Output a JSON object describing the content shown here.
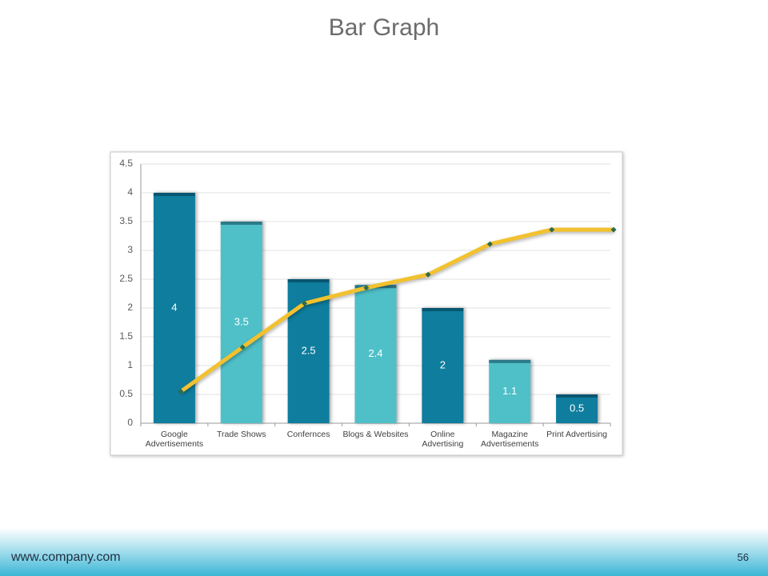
{
  "title": "Bar Graph",
  "chart_data": [
    {
      "type": "bar",
      "categories": [
        "Google Advertisements",
        "Trade Shows",
        "Confernces",
        "Blogs & Websites",
        "Online Advertising",
        "Magazine Advertisements",
        "Print Advertising"
      ],
      "values": [
        4,
        3.5,
        2.5,
        2.4,
        2,
        1.1,
        0.5
      ],
      "colors": [
        "#0f7d9e",
        "#4fc0c8",
        "#0f7d9e",
        "#4fc0c8",
        "#0f7d9e",
        "#4fc0c8",
        "#0f7d9e"
      ],
      "ylim": [
        0,
        4.5
      ],
      "yticks": [
        0,
        0.5,
        1,
        1.5,
        2,
        2.5,
        3,
        3.5,
        4,
        4.5
      ],
      "grid": true
    },
    {
      "type": "line",
      "values": [
        0.55,
        1.32,
        2.08,
        2.35,
        2.58,
        3.11,
        3.36,
        3.36
      ],
      "color": "#f2c12e",
      "marker_color": "#2e6b4f",
      "ylim": [
        0,
        4.5
      ]
    }
  ],
  "footer": {
    "url": "www.company.com",
    "page": "56"
  }
}
